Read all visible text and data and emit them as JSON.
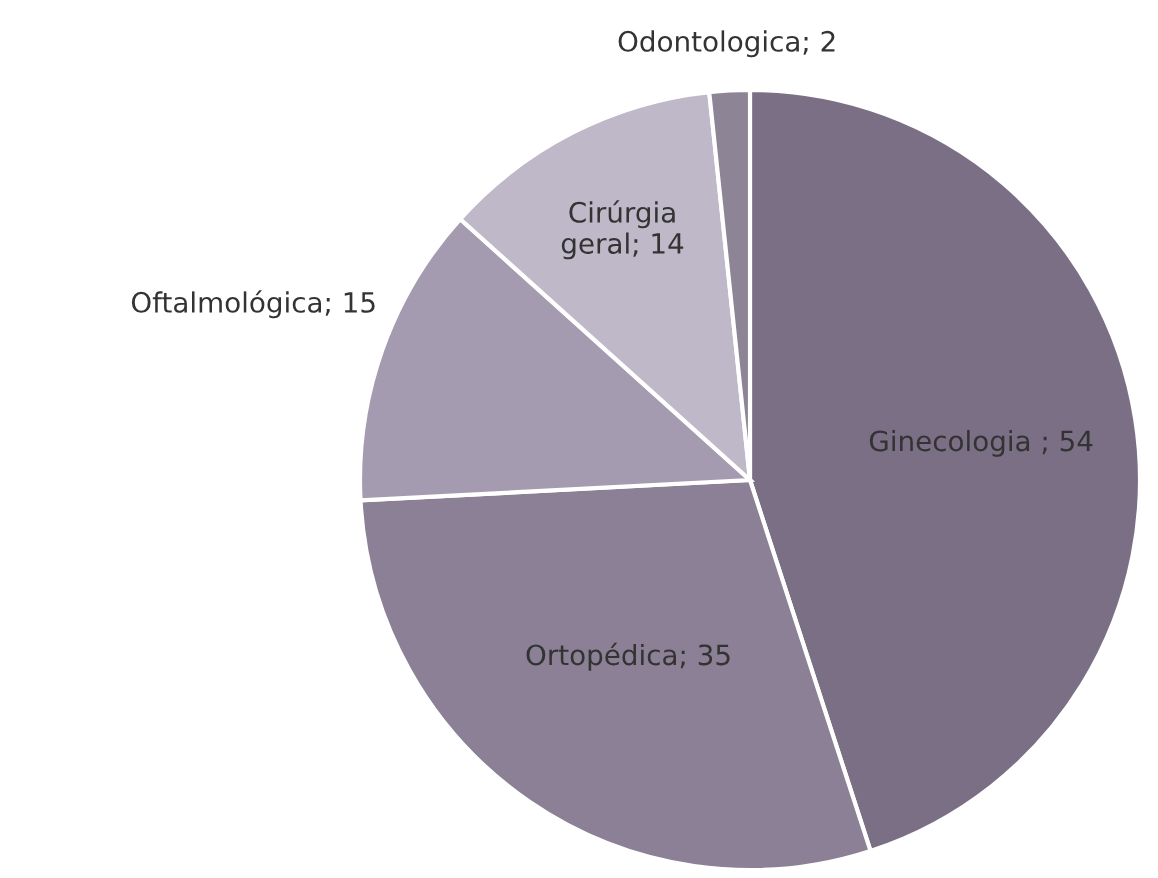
{
  "chart_data": {
    "type": "pie",
    "categories": [
      "Ginecologia ; 54",
      "Ortopédica; 35",
      "Oftalmológica; 15",
      "Cirúrgia\ngeral; 14",
      "Odontologica; 2"
    ],
    "values": [
      54,
      35,
      15,
      14,
      2
    ],
    "colors": [
      "#7b6f86",
      "#8b8095",
      "#a59bb0",
      "#bfb8c8",
      "#8d8596"
    ]
  }
}
